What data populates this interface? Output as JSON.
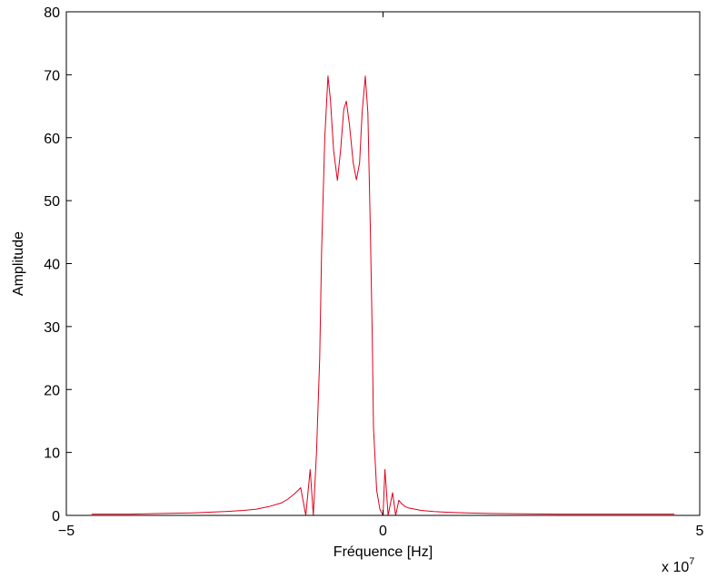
{
  "chart_data": {
    "type": "line",
    "title": "",
    "xlabel": "Fréquence [Hz]",
    "ylabel": "Amplitude",
    "x_multiplier_label": "x 10",
    "x_multiplier_exponent": "7",
    "xlim": [
      -5,
      5
    ],
    "ylim": [
      0,
      80
    ],
    "x_unit_scale": 10000000,
    "xticks": [
      -5,
      0,
      5
    ],
    "xtick_labels": [
      "−5",
      "0",
      "5"
    ],
    "yticks": [
      0,
      10,
      20,
      30,
      40,
      50,
      60,
      70,
      80
    ],
    "ytick_labels": [
      "0",
      "10",
      "20",
      "30",
      "40",
      "50",
      "60",
      "70",
      "80"
    ],
    "grid": false,
    "legend": "none",
    "series": [
      {
        "color": "#e0001b",
        "x": [
          -4.6,
          -4.0,
          -3.5,
          -3.0,
          -2.5,
          -2.2,
          -2.0,
          -1.8,
          -1.6,
          -1.5,
          -1.4,
          -1.3,
          -1.22,
          -1.15,
          -1.1,
          -1.05,
          -1.0,
          -0.97,
          -0.92,
          -0.87,
          -0.83,
          -0.78,
          -0.72,
          -0.67,
          -0.62,
          -0.58,
          -0.53,
          -0.47,
          -0.42,
          -0.37,
          -0.33,
          -0.28,
          -0.24,
          -0.2,
          -0.17,
          -0.15,
          -0.1,
          -0.05,
          0.0,
          0.03,
          0.08,
          0.15,
          0.2,
          0.25,
          0.3,
          0.35,
          0.4,
          0.5,
          0.6,
          0.8,
          1.0,
          1.3,
          1.7,
          2.2,
          2.8,
          3.5,
          4.6
        ],
        "y": [
          0.2,
          0.2,
          0.3,
          0.4,
          0.6,
          0.8,
          1.0,
          1.4,
          2.0,
          2.6,
          3.4,
          4.4,
          0.0,
          7.3,
          0.0,
          10.0,
          25.0,
          42.0,
          60.0,
          69.8,
          66.0,
          58.0,
          53.2,
          58.0,
          64.5,
          65.8,
          62.0,
          56.0,
          53.3,
          56.0,
          64.0,
          69.8,
          64.0,
          45.0,
          28.0,
          14.0,
          4.0,
          1.0,
          0.0,
          7.3,
          0.0,
          3.6,
          0.0,
          2.4,
          1.8,
          1.4,
          1.2,
          1.0,
          0.8,
          0.6,
          0.5,
          0.4,
          0.3,
          0.25,
          0.2,
          0.2,
          0.2
        ]
      }
    ]
  }
}
